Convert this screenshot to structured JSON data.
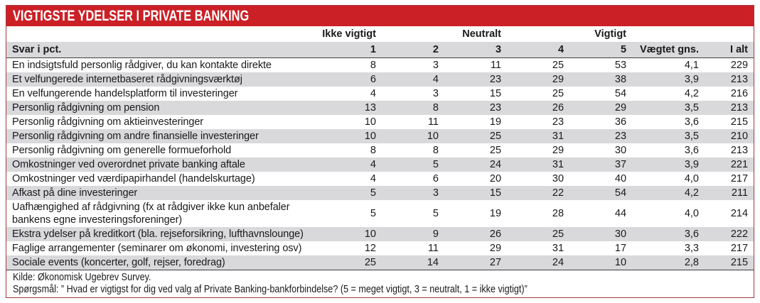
{
  "chart_data": {
    "type": "table",
    "title": "VIGTIGSTE YDELSER I PRIVATE BANKING",
    "group_headers": [
      "Ikke vigtigt",
      "Neutralt",
      "Vigtigt"
    ],
    "columns": [
      "Svar i pct.",
      "1",
      "2",
      "3",
      "4",
      "5",
      "Vægtet gns.",
      "I alt"
    ],
    "rows": [
      {
        "label": "En indsigtsfuld personlig rådgiver, du kan kontakte direkte",
        "values": [
          "8",
          "3",
          "11",
          "25",
          "53",
          "4,1",
          "229"
        ]
      },
      {
        "label": "Et velfungerede internetbaseret rådgivningsværktøj",
        "values": [
          "6",
          "4",
          "23",
          "29",
          "38",
          "3,9",
          "213"
        ]
      },
      {
        "label": "En velfungerende handelsplatform til investeringer",
        "values": [
          "4",
          "3",
          "15",
          "25",
          "54",
          "4,2",
          "216"
        ]
      },
      {
        "label": "Personlig rådgivning om pension",
        "values": [
          "13",
          "8",
          "23",
          "26",
          "29",
          "3,5",
          "213"
        ]
      },
      {
        "label": "Personlig rådgivning om aktieinvesteringer",
        "values": [
          "10",
          "11",
          "19",
          "23",
          "36",
          "3,6",
          "215"
        ]
      },
      {
        "label": "Personlig rådgivning om andre finansielle investeringer",
        "values": [
          "10",
          "10",
          "25",
          "31",
          "23",
          "3,5",
          "210"
        ]
      },
      {
        "label": "Personlig rådgivning om generelle formueforhold",
        "values": [
          "8",
          "8",
          "25",
          "29",
          "30",
          "3,6",
          "213"
        ]
      },
      {
        "label": "Omkostninger ved overordnet private banking aftale",
        "values": [
          "4",
          "5",
          "24",
          "31",
          "37",
          "3,9",
          "221"
        ]
      },
      {
        "label": "Omkostninger ved værdipapirhandel (handelskurtage)",
        "values": [
          "4",
          "6",
          "20",
          "30",
          "40",
          "4,0",
          "217"
        ]
      },
      {
        "label": "Afkast på dine investeringer",
        "values": [
          "5",
          "3",
          "15",
          "22",
          "54",
          "4,2",
          "211"
        ]
      },
      {
        "label": "Uafhængighed af rådgivning (fx at rådgiver ikke kun anbefaler bankens egne investeringsforeninger)",
        "values": [
          "5",
          "5",
          "19",
          "28",
          "44",
          "4,0",
          "214"
        ]
      },
      {
        "label": "Ekstra ydelser på kreditkort (bla. rejseforsikring, lufthavnslounge)",
        "values": [
          "10",
          "9",
          "26",
          "25",
          "30",
          "3,6",
          "222"
        ]
      },
      {
        "label": "Faglige arrangementer (seminarer om økonomi, investering osv)",
        "values": [
          "12",
          "11",
          "29",
          "31",
          "17",
          "3,3",
          "217"
        ]
      },
      {
        "label": "Sociale events (koncerter, golf, rejser, foredrag)",
        "values": [
          "25",
          "14",
          "27",
          "24",
          "10",
          "2,8",
          "215"
        ]
      }
    ],
    "legend_note": "5 = meget vigtigt, 3 = neutralt, 1 = ikke vigtigt"
  },
  "footer": {
    "source": "Kilde: Økonomisk Ugebrev Survey.",
    "question": "Spørgsmål: ” Hvad er vigtigst for dig ved valg af Private Banking-bankforbindelse? (5 = meget vigtigt, 3 = neutralt, 1 = ikke vigtigt)”"
  },
  "colors": {
    "accent_red": "#cb2026",
    "border_red": "#a13a3e",
    "stripe_gray": "#d9d9dc",
    "header_gray": "#d9d9dc",
    "text": "#1a1a1a",
    "rule_dark": "#3f3f3f"
  }
}
